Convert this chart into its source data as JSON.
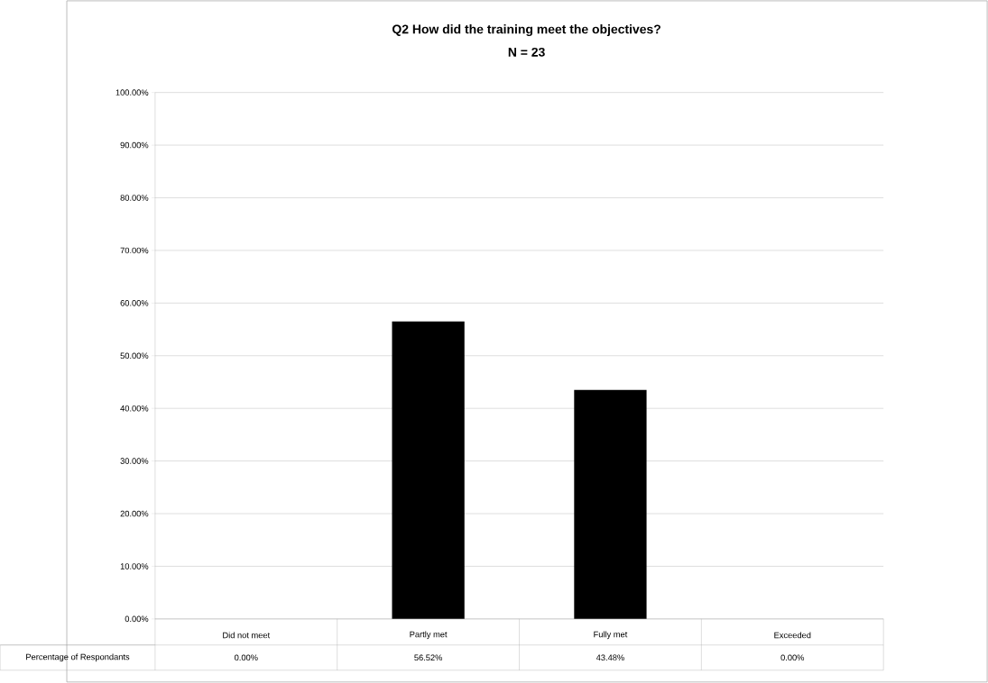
{
  "chart_data": {
    "type": "bar",
    "title": "Q2 How did the training meet the objectives?",
    "subtitle": "N = 23",
    "categories": [
      "Did not meet",
      "Partly met",
      "Fully met",
      "Exceeded"
    ],
    "series": [
      {
        "name": "Percentage of Respondants",
        "color": "#000000",
        "values": [
          0,
          56.52,
          43.48,
          0
        ],
        "value_labels": [
          "0.00%",
          "56.52%",
          "43.48%",
          "0.00%"
        ]
      }
    ],
    "ylim": [
      0,
      100
    ],
    "yticks": [
      {
        "value": 0,
        "label": "0.00%"
      },
      {
        "value": 10,
        "label": "10.00%"
      },
      {
        "value": 20,
        "label": "20.00%"
      },
      {
        "value": 30,
        "label": "30.00%"
      },
      {
        "value": 40,
        "label": "40.00%"
      },
      {
        "value": 50,
        "label": "50.00%"
      },
      {
        "value": 60,
        "label": "60.00%"
      },
      {
        "value": 70,
        "label": "70.00%"
      },
      {
        "value": 80,
        "label": "80.00%"
      },
      {
        "value": 90,
        "label": "90.00%"
      },
      {
        "value": 100,
        "label": "100.00%"
      }
    ],
    "grid": "y"
  }
}
